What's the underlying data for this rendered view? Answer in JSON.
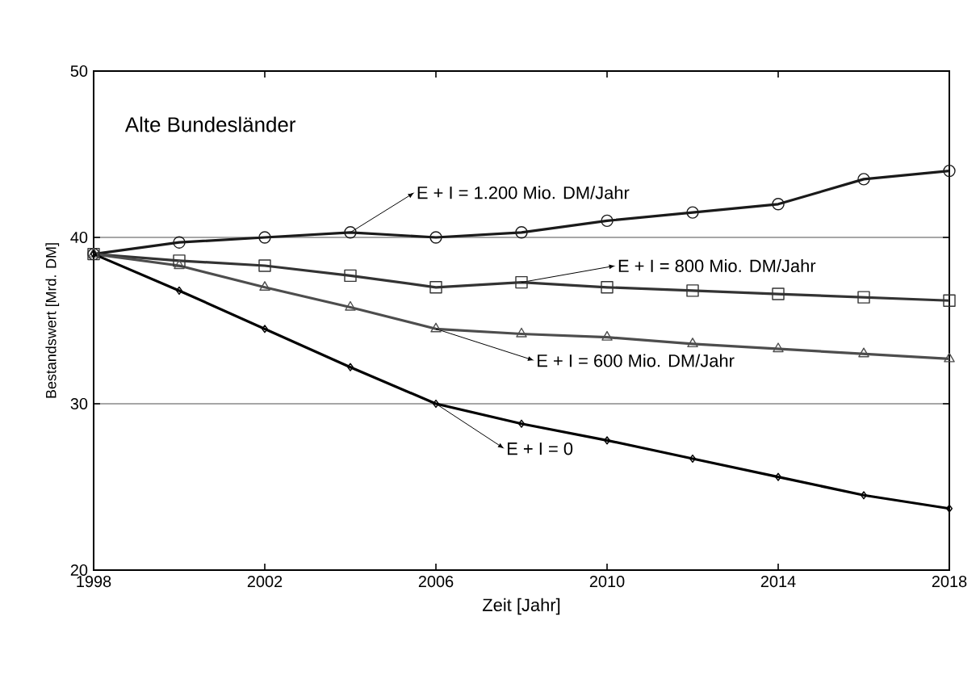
{
  "chart_data": {
    "type": "line",
    "title": "Alte Bundesländer",
    "xlabel": "Zeit [Jahr]",
    "ylabel": "Bestandswert [Mrd. DM]",
    "x": [
      1998,
      2000,
      2002,
      2004,
      2006,
      2008,
      2010,
      2012,
      2014,
      2016,
      2018
    ],
    "series": [
      {
        "color": "#1a1a1a",
        "marker": "circle",
        "values": [
          39,
          39.7,
          40.0,
          40.3,
          40.0,
          40.3,
          41.0,
          41.5,
          42.0,
          43.5,
          44.0
        ]
      },
      {
        "color": "#333333",
        "marker": "square",
        "values": [
          39,
          38.6,
          38.3,
          37.7,
          37.0,
          37.3,
          37.0,
          36.8,
          36.6,
          36.4,
          36.2
        ]
      },
      {
        "color": "#4d4d4d",
        "marker": "triangle",
        "values": [
          39,
          38.3,
          37.0,
          35.8,
          34.5,
          34.2,
          34.0,
          33.6,
          33.3,
          33.0,
          32.7
        ]
      },
      {
        "color": "#000000",
        "marker": "diamond",
        "values": [
          39,
          36.8,
          34.5,
          32.2,
          30.0,
          28.8,
          27.8,
          26.7,
          25.6,
          24.5,
          23.7
        ]
      }
    ],
    "annotations": [
      {
        "text": "E + I = 1.200 Mio. DM/Jahr",
        "x": 2004,
        "y": 40.3
      },
      {
        "text": "E + I = 800 Mio. DM/Jahr",
        "x": 2008,
        "y": 37.3
      },
      {
        "text": "E + I = 600 Mio. DM/Jahr",
        "x": 2006,
        "y": 34.5
      },
      {
        "text": "E + I = 0",
        "x": 2006,
        "y": 30.0
      }
    ],
    "xlim": [
      1998,
      2018
    ],
    "xticks": [
      1998,
      2002,
      2006,
      2010,
      2014,
      2018
    ],
    "ylim": [
      20,
      50
    ],
    "yticks": [
      20,
      30,
      40,
      50
    ],
    "grid": "y",
    "line_style": "solid"
  }
}
